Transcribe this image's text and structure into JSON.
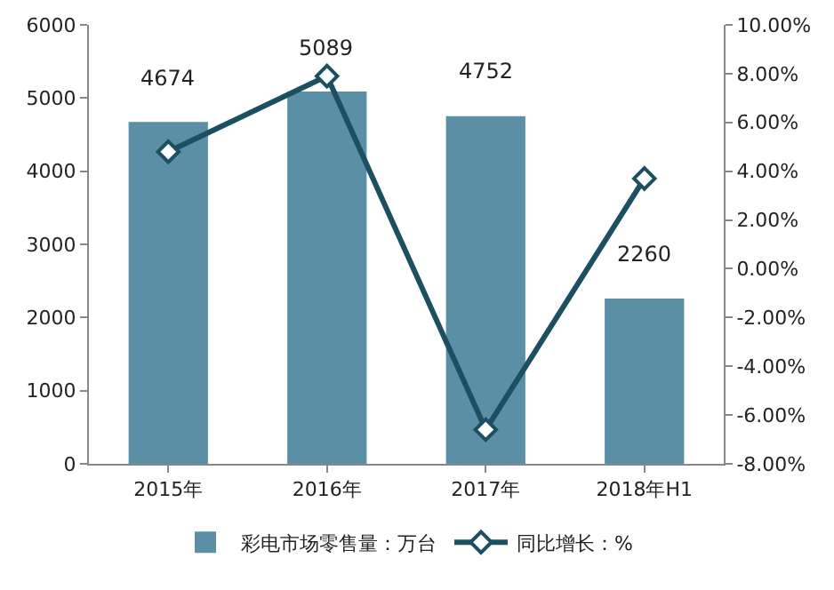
{
  "chart_data": {
    "type": "bar",
    "categories": [
      "2015年",
      "2016年",
      "2017年",
      "2018年H1"
    ],
    "series": [
      {
        "name": "彩电市场零售量：万台",
        "color": "#5b8fa6",
        "values": [
          4674,
          5089,
          4752,
          2260
        ],
        "value_labels": [
          "4674",
          "5089",
          "4752",
          "2260"
        ]
      },
      {
        "name": "同比增长：%",
        "type": "line",
        "axis": "y2",
        "color": "#1d4f63",
        "values": [
          4.8,
          7.9,
          -6.6,
          3.7
        ],
        "marker": "diamond"
      }
    ],
    "ylim": [
      0,
      6000
    ],
    "yticks": [
      0,
      1000,
      2000,
      3000,
      4000,
      5000,
      6000
    ],
    "y2lim": [
      -8,
      10
    ],
    "y2ticks": [
      {
        "value": -8,
        "label": "-8.00%"
      },
      {
        "value": -6,
        "label": "-6.00%"
      },
      {
        "value": -4,
        "label": "-4.00%"
      },
      {
        "value": -2,
        "label": "-2.00%"
      },
      {
        "value": 0,
        "label": "0.00%"
      },
      {
        "value": 2,
        "label": "2.00%"
      },
      {
        "value": 4,
        "label": "4.00%"
      },
      {
        "value": 6,
        "label": "6.00%"
      },
      {
        "value": 8,
        "label": "8.00%"
      },
      {
        "value": 10,
        "label": "10.00%"
      }
    ],
    "grid": false,
    "legend": "bottom"
  }
}
